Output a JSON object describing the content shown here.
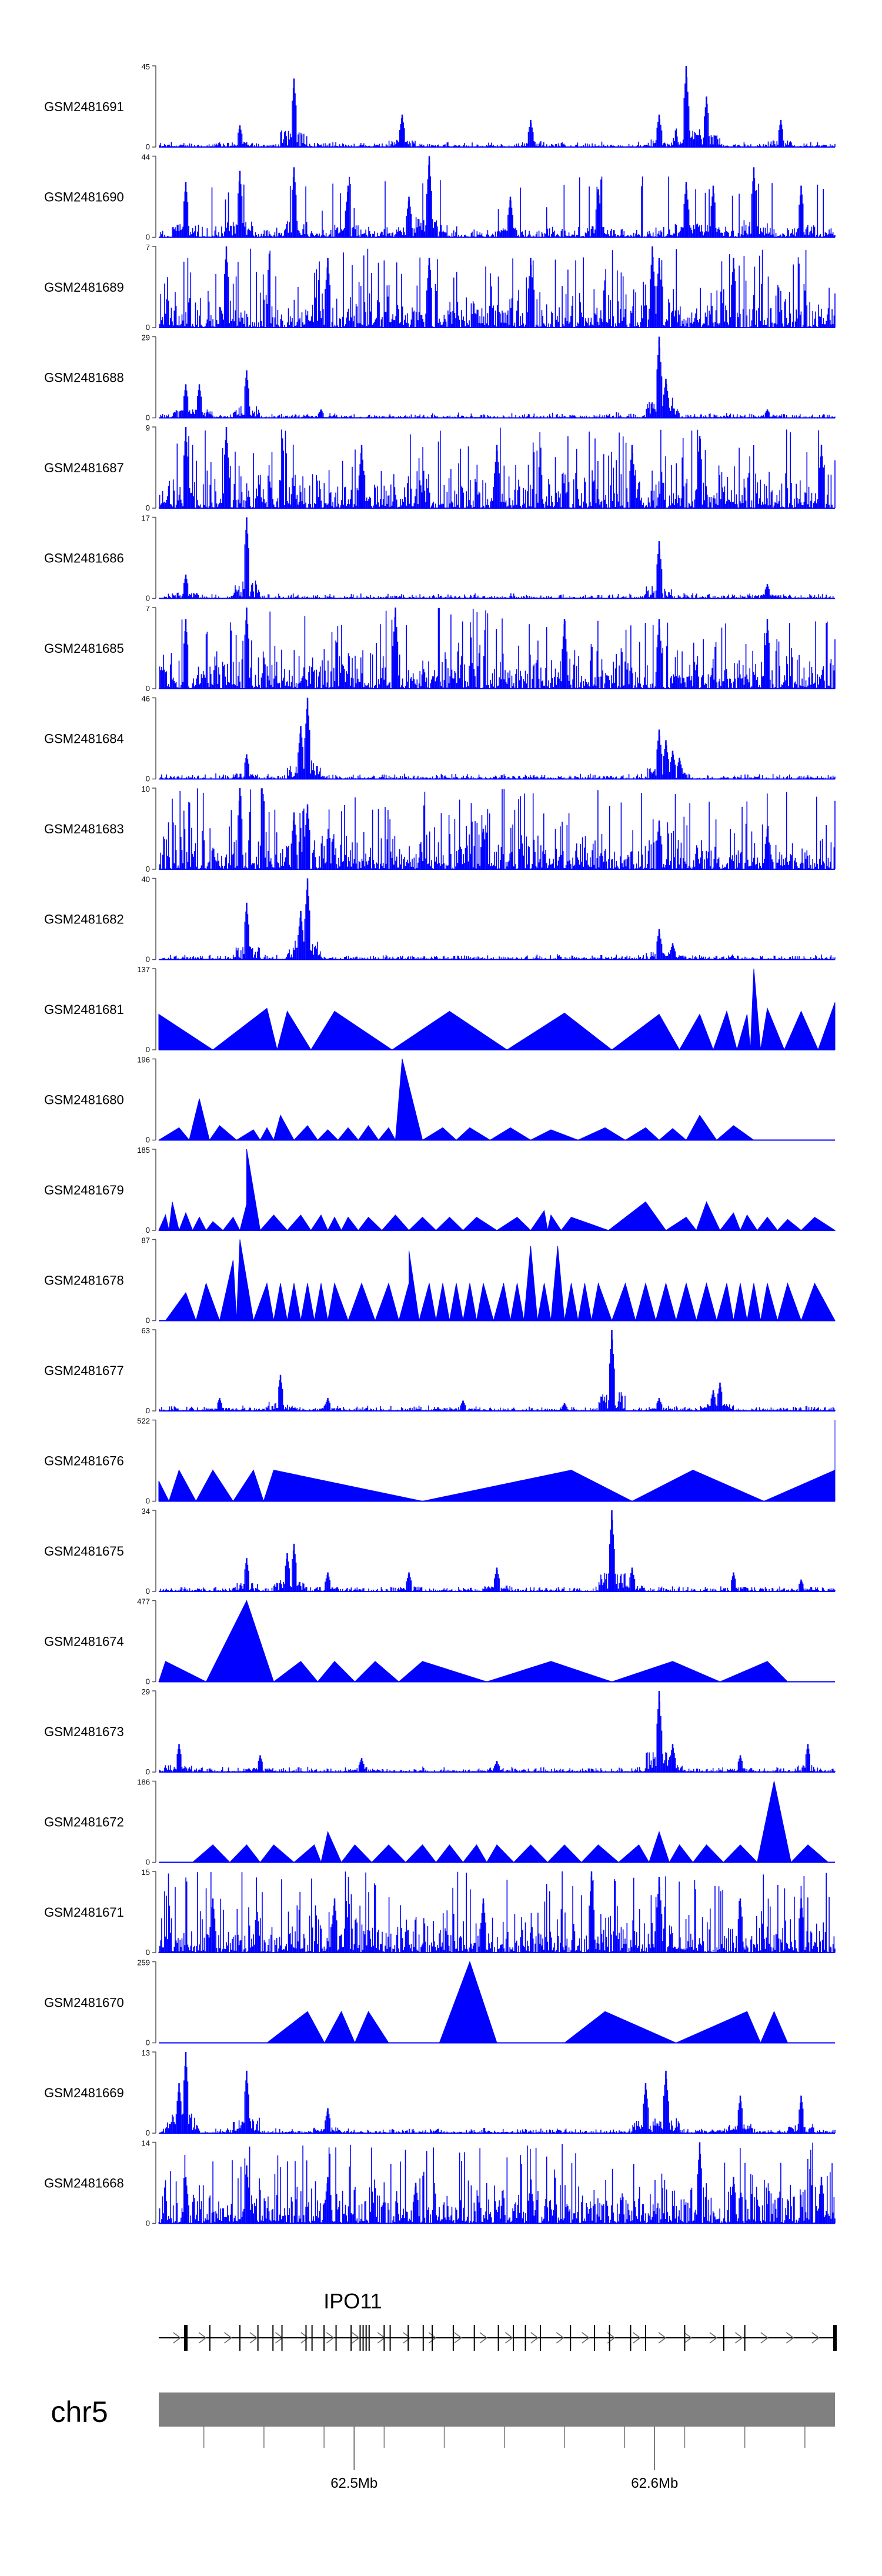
{
  "chart_data": {
    "type": "area",
    "title": "",
    "color": "#0000ff",
    "gene_color": "#000000",
    "chrom_bar_color": "#808080",
    "genome_axis": {
      "chromosome": "chr5",
      "range": [
        62.435,
        62.66
      ],
      "tick_labels": [
        {
          "value": 62.5,
          "label": "62.5Mb"
        },
        {
          "value": 62.6,
          "label": "62.6Mb"
        }
      ],
      "minor_ticks": [
        62.45,
        62.47,
        62.49,
        62.51,
        62.53,
        62.55,
        62.57,
        62.59,
        62.61,
        62.63,
        62.65
      ]
    },
    "gene": {
      "name": "IPO11",
      "start": 62.435,
      "end": 62.66,
      "strand": "+",
      "exons": [
        62.444,
        62.452,
        62.462,
        62.468,
        62.473,
        62.476,
        62.484,
        62.486,
        62.49,
        62.494,
        62.499,
        62.502,
        62.503,
        62.504,
        62.505,
        62.51,
        62.512,
        62.518,
        62.523,
        62.526,
        62.533,
        62.54,
        62.548,
        62.553,
        62.557,
        62.562,
        62.572,
        62.58,
        62.585,
        62.592,
        62.597,
        62.61,
        62.623,
        62.63,
        62.66
      ]
    },
    "tracks": [
      {
        "name": "GSM2481691",
        "ymax": 45,
        "style": "dense",
        "peaks": [
          [
            0.12,
            12
          ],
          [
            0.2,
            38
          ],
          [
            0.36,
            18
          ],
          [
            0.55,
            15
          ],
          [
            0.74,
            18
          ],
          [
            0.78,
            45
          ],
          [
            0.81,
            28
          ],
          [
            0.92,
            15
          ]
        ]
      },
      {
        "name": "GSM2481690",
        "ymax": 44,
        "style": "spiky",
        "peaks": [
          [
            0.04,
            30
          ],
          [
            0.12,
            36
          ],
          [
            0.2,
            38
          ],
          [
            0.28,
            28
          ],
          [
            0.37,
            22
          ],
          [
            0.4,
            44
          ],
          [
            0.52,
            22
          ],
          [
            0.65,
            26
          ],
          [
            0.78,
            30
          ],
          [
            0.82,
            28
          ],
          [
            0.88,
            38
          ],
          [
            0.95,
            28
          ]
        ]
      },
      {
        "name": "GSM2481689",
        "ymax": 7,
        "style": "busy",
        "peaks": [
          [
            0.1,
            7
          ],
          [
            0.25,
            6
          ],
          [
            0.4,
            6
          ],
          [
            0.55,
            6
          ],
          [
            0.73,
            7
          ],
          [
            0.74,
            6
          ],
          [
            0.85,
            6
          ]
        ]
      },
      {
        "name": "GSM2481688",
        "ymax": 29,
        "style": "dense",
        "peaks": [
          [
            0.04,
            12
          ],
          [
            0.06,
            12
          ],
          [
            0.13,
            17
          ],
          [
            0.24,
            3
          ],
          [
            0.74,
            29
          ],
          [
            0.75,
            14
          ],
          [
            0.9,
            3
          ]
        ]
      },
      {
        "name": "GSM2481687",
        "ymax": 9,
        "style": "busy",
        "peaks": [
          [
            0.04,
            9
          ],
          [
            0.1,
            9
          ],
          [
            0.3,
            7
          ],
          [
            0.5,
            7
          ],
          [
            0.7,
            7
          ],
          [
            0.8,
            8
          ],
          [
            0.98,
            7
          ]
        ]
      },
      {
        "name": "GSM2481686",
        "ymax": 17,
        "style": "dense",
        "peaks": [
          [
            0.04,
            5
          ],
          [
            0.13,
            17
          ],
          [
            0.74,
            12
          ],
          [
            0.9,
            3
          ]
        ]
      },
      {
        "name": "GSM2481685",
        "ymax": 7,
        "style": "busy",
        "peaks": [
          [
            0.04,
            6
          ],
          [
            0.13,
            7
          ],
          [
            0.35,
            7
          ],
          [
            0.6,
            6
          ],
          [
            0.74,
            6
          ],
          [
            0.9,
            6
          ]
        ]
      },
      {
        "name": "GSM2481684",
        "ymax": 46,
        "style": "dense",
        "peaks": [
          [
            0.13,
            14
          ],
          [
            0.22,
            46
          ],
          [
            0.21,
            30
          ],
          [
            0.74,
            28
          ],
          [
            0.75,
            22
          ],
          [
            0.76,
            16
          ],
          [
            0.77,
            12
          ]
        ]
      },
      {
        "name": "GSM2481683",
        "ymax": 10,
        "style": "busy",
        "peaks": [
          [
            0.12,
            10
          ],
          [
            0.2,
            7
          ],
          [
            0.22,
            8
          ],
          [
            0.48,
            5
          ],
          [
            0.74,
            6
          ],
          [
            0.9,
            5
          ]
        ]
      },
      {
        "name": "GSM2481682",
        "ymax": 40,
        "style": "dense",
        "peaks": [
          [
            0.13,
            28
          ],
          [
            0.22,
            40
          ],
          [
            0.21,
            24
          ],
          [
            0.74,
            15
          ],
          [
            0.76,
            8
          ]
        ]
      },
      {
        "name": "GSM2481681",
        "ymax": 137,
        "style": "tri",
        "peaks": [
          [
            0.0,
            60
          ],
          [
            0.16,
            70
          ],
          [
            0.19,
            65
          ],
          [
            0.26,
            65
          ],
          [
            0.43,
            65
          ],
          [
            0.6,
            62
          ],
          [
            0.74,
            60
          ],
          [
            0.8,
            60
          ],
          [
            0.84,
            65
          ],
          [
            0.87,
            60
          ],
          [
            0.88,
            137
          ],
          [
            0.9,
            70
          ],
          [
            0.95,
            65
          ],
          [
            1.0,
            80
          ]
        ]
      },
      {
        "name": "GSM2481680",
        "ymax": 196,
        "style": "tri",
        "peaks": [
          [
            0.03,
            30
          ],
          [
            0.06,
            100
          ],
          [
            0.09,
            35
          ],
          [
            0.14,
            25
          ],
          [
            0.16,
            30
          ],
          [
            0.18,
            60
          ],
          [
            0.22,
            35
          ],
          [
            0.25,
            25
          ],
          [
            0.28,
            30
          ],
          [
            0.31,
            35
          ],
          [
            0.34,
            30
          ],
          [
            0.36,
            196
          ],
          [
            0.42,
            30
          ],
          [
            0.46,
            30
          ],
          [
            0.52,
            30
          ],
          [
            0.58,
            25
          ],
          [
            0.66,
            30
          ],
          [
            0.72,
            30
          ],
          [
            0.76,
            28
          ],
          [
            0.8,
            60
          ],
          [
            0.85,
            35
          ]
        ]
      },
      {
        "name": "GSM2481679",
        "ymax": 185,
        "style": "tri",
        "peaks": [
          [
            0.01,
            35
          ],
          [
            0.02,
            65
          ],
          [
            0.04,
            40
          ],
          [
            0.06,
            30
          ],
          [
            0.08,
            20
          ],
          [
            0.11,
            30
          ],
          [
            0.13,
            60
          ],
          [
            0.13,
            185
          ],
          [
            0.17,
            35
          ],
          [
            0.21,
            35
          ],
          [
            0.24,
            35
          ],
          [
            0.26,
            30
          ],
          [
            0.28,
            30
          ],
          [
            0.31,
            30
          ],
          [
            0.35,
            35
          ],
          [
            0.39,
            30
          ],
          [
            0.43,
            30
          ],
          [
            0.47,
            30
          ],
          [
            0.53,
            30
          ],
          [
            0.57,
            45
          ],
          [
            0.58,
            35
          ],
          [
            0.61,
            30
          ],
          [
            0.72,
            65
          ],
          [
            0.78,
            30
          ],
          [
            0.81,
            65
          ],
          [
            0.85,
            40
          ],
          [
            0.87,
            35
          ],
          [
            0.9,
            30
          ],
          [
            0.93,
            25
          ],
          [
            0.97,
            30
          ]
        ]
      },
      {
        "name": "GSM2481678",
        "ymax": 87,
        "style": "tri",
        "peaks": [
          [
            0.04,
            30
          ],
          [
            0.07,
            40
          ],
          [
            0.11,
            65
          ],
          [
            0.12,
            87
          ],
          [
            0.16,
            40
          ],
          [
            0.18,
            40
          ],
          [
            0.2,
            40
          ],
          [
            0.22,
            40
          ],
          [
            0.24,
            40
          ],
          [
            0.26,
            40
          ],
          [
            0.3,
            40
          ],
          [
            0.34,
            40
          ],
          [
            0.37,
            40
          ],
          [
            0.37,
            75
          ],
          [
            0.4,
            40
          ],
          [
            0.42,
            40
          ],
          [
            0.44,
            40
          ],
          [
            0.46,
            40
          ],
          [
            0.48,
            40
          ],
          [
            0.51,
            40
          ],
          [
            0.53,
            40
          ],
          [
            0.55,
            80
          ],
          [
            0.57,
            40
          ],
          [
            0.59,
            80
          ],
          [
            0.61,
            40
          ],
          [
            0.63,
            40
          ],
          [
            0.65,
            40
          ],
          [
            0.69,
            40
          ],
          [
            0.72,
            40
          ],
          [
            0.75,
            40
          ],
          [
            0.78,
            40
          ],
          [
            0.81,
            40
          ],
          [
            0.84,
            40
          ],
          [
            0.86,
            40
          ],
          [
            0.88,
            40
          ],
          [
            0.9,
            40
          ],
          [
            0.93,
            40
          ],
          [
            0.97,
            40
          ]
        ]
      },
      {
        "name": "GSM2481677",
        "ymax": 63,
        "style": "dense",
        "peaks": [
          [
            0.09,
            10
          ],
          [
            0.18,
            28
          ],
          [
            0.25,
            10
          ],
          [
            0.45,
            8
          ],
          [
            0.6,
            6
          ],
          [
            0.67,
            63
          ],
          [
            0.74,
            10
          ],
          [
            0.82,
            16
          ],
          [
            0.83,
            22
          ]
        ]
      },
      {
        "name": "GSM2481676",
        "ymax": 522,
        "style": "tri",
        "peaks": [
          [
            0.0,
            130
          ],
          [
            0.03,
            200
          ],
          [
            0.08,
            200
          ],
          [
            0.14,
            200
          ],
          [
            0.17,
            200
          ],
          [
            0.61,
            200
          ],
          [
            0.79,
            200
          ],
          [
            1.0,
            200
          ],
          [
            1.0,
            522
          ]
        ]
      },
      {
        "name": "GSM2481675",
        "ymax": 34,
        "style": "dense",
        "peaks": [
          [
            0.13,
            14
          ],
          [
            0.19,
            16
          ],
          [
            0.2,
            20
          ],
          [
            0.25,
            8
          ],
          [
            0.37,
            8
          ],
          [
            0.5,
            10
          ],
          [
            0.67,
            34
          ],
          [
            0.7,
            10
          ],
          [
            0.85,
            8
          ],
          [
            0.95,
            5
          ]
        ]
      },
      {
        "name": "GSM2481674",
        "ymax": 477,
        "style": "tri",
        "peaks": [
          [
            0.01,
            120
          ],
          [
            0.13,
            477
          ],
          [
            0.21,
            120
          ],
          [
            0.26,
            120
          ],
          [
            0.32,
            120
          ],
          [
            0.39,
            120
          ],
          [
            0.58,
            120
          ],
          [
            0.76,
            120
          ],
          [
            0.9,
            120
          ]
        ]
      },
      {
        "name": "GSM2481673",
        "ymax": 29,
        "style": "dense",
        "peaks": [
          [
            0.03,
            10
          ],
          [
            0.15,
            6
          ],
          [
            0.3,
            5
          ],
          [
            0.5,
            4
          ],
          [
            0.74,
            29
          ],
          [
            0.76,
            10
          ],
          [
            0.86,
            6
          ],
          [
            0.96,
            10
          ]
        ]
      },
      {
        "name": "GSM2481672",
        "ymax": 186,
        "style": "tri",
        "peaks": [
          [
            0.08,
            40
          ],
          [
            0.13,
            40
          ],
          [
            0.17,
            40
          ],
          [
            0.23,
            40
          ],
          [
            0.25,
            70
          ],
          [
            0.29,
            40
          ],
          [
            0.34,
            40
          ],
          [
            0.39,
            40
          ],
          [
            0.43,
            40
          ],
          [
            0.47,
            40
          ],
          [
            0.5,
            40
          ],
          [
            0.55,
            40
          ],
          [
            0.6,
            40
          ],
          [
            0.65,
            40
          ],
          [
            0.71,
            40
          ],
          [
            0.74,
            70
          ],
          [
            0.77,
            40
          ],
          [
            0.81,
            40
          ],
          [
            0.86,
            40
          ],
          [
            0.91,
            186
          ],
          [
            0.96,
            40
          ]
        ]
      },
      {
        "name": "GSM2481671",
        "ymax": 15,
        "style": "busy",
        "peaks": [
          [
            0.08,
            10
          ],
          [
            0.26,
            10
          ],
          [
            0.48,
            10
          ],
          [
            0.64,
            15
          ],
          [
            0.74,
            14
          ],
          [
            0.86,
            10
          ],
          [
            0.95,
            10
          ]
        ]
      },
      {
        "name": "GSM2481670",
        "ymax": 259,
        "style": "tri",
        "peaks": [
          [
            0.1,
            0
          ],
          [
            0.22,
            100
          ],
          [
            0.27,
            100
          ],
          [
            0.31,
            100
          ],
          [
            0.37,
            0
          ],
          [
            0.46,
            259
          ],
          [
            0.54,
            0
          ],
          [
            0.66,
            100
          ],
          [
            0.87,
            100
          ],
          [
            0.91,
            100
          ],
          [
            0.95,
            0
          ]
        ]
      },
      {
        "name": "GSM2481669",
        "ymax": 13,
        "style": "dense",
        "peaks": [
          [
            0.03,
            8
          ],
          [
            0.04,
            13
          ],
          [
            0.13,
            10
          ],
          [
            0.25,
            4
          ],
          [
            0.72,
            8
          ],
          [
            0.75,
            10
          ],
          [
            0.86,
            6
          ],
          [
            0.95,
            6
          ]
        ]
      },
      {
        "name": "GSM2481668",
        "ymax": 14,
        "style": "busy",
        "peaks": [
          [
            0.04,
            8
          ],
          [
            0.13,
            10
          ],
          [
            0.25,
            8
          ],
          [
            0.38,
            7
          ],
          [
            0.55,
            7
          ],
          [
            0.8,
            14
          ],
          [
            0.85,
            8
          ],
          [
            0.98,
            8
          ]
        ]
      }
    ]
  }
}
